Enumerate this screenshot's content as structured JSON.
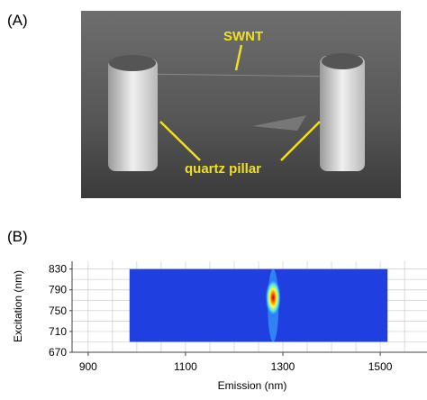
{
  "panel_a": {
    "label": "(A)",
    "annotations": {
      "swnt": "SWNT",
      "pillar": "quartz pillar"
    }
  },
  "chart_data": {
    "type": "contour",
    "panel_label": "(B)",
    "x_label": "Emission (nm)",
    "y_label": "Excitation (nm)",
    "xlim": [
      867,
      1596
    ],
    "ylim": [
      670,
      845
    ],
    "xticks": [
      900,
      1100,
      1300,
      1500
    ],
    "yticks": [
      670,
      710,
      750,
      790,
      830
    ],
    "grid": true,
    "field": {
      "x": [
        985,
        1515
      ],
      "y": [
        690,
        830
      ],
      "color": "#1f3fe0"
    },
    "peak": {
      "x": 1280,
      "y": 775
    }
  }
}
